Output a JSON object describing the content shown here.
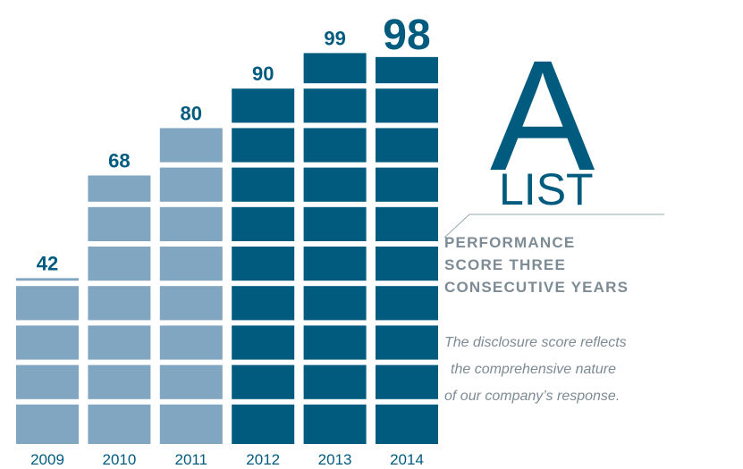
{
  "chart_data": {
    "type": "bar",
    "categories": [
      "2009",
      "2010",
      "2011",
      "2012",
      "2013",
      "2014"
    ],
    "values": [
      42,
      68,
      80,
      90,
      99,
      98
    ],
    "colors": [
      "#80a6c1",
      "#80a6c1",
      "#80a6c1",
      "#005b7f",
      "#005b7f",
      "#005b7f"
    ],
    "annotations": {
      "grade": "A",
      "grade_word": "LIST",
      "headline": [
        "PERFORMANCE",
        "SCORE THREE",
        "CONSECUTIVE YEARS"
      ],
      "note": [
        "The disclosure score reflects",
        "the comprehensive nature",
        "of our company’s response."
      ]
    }
  }
}
